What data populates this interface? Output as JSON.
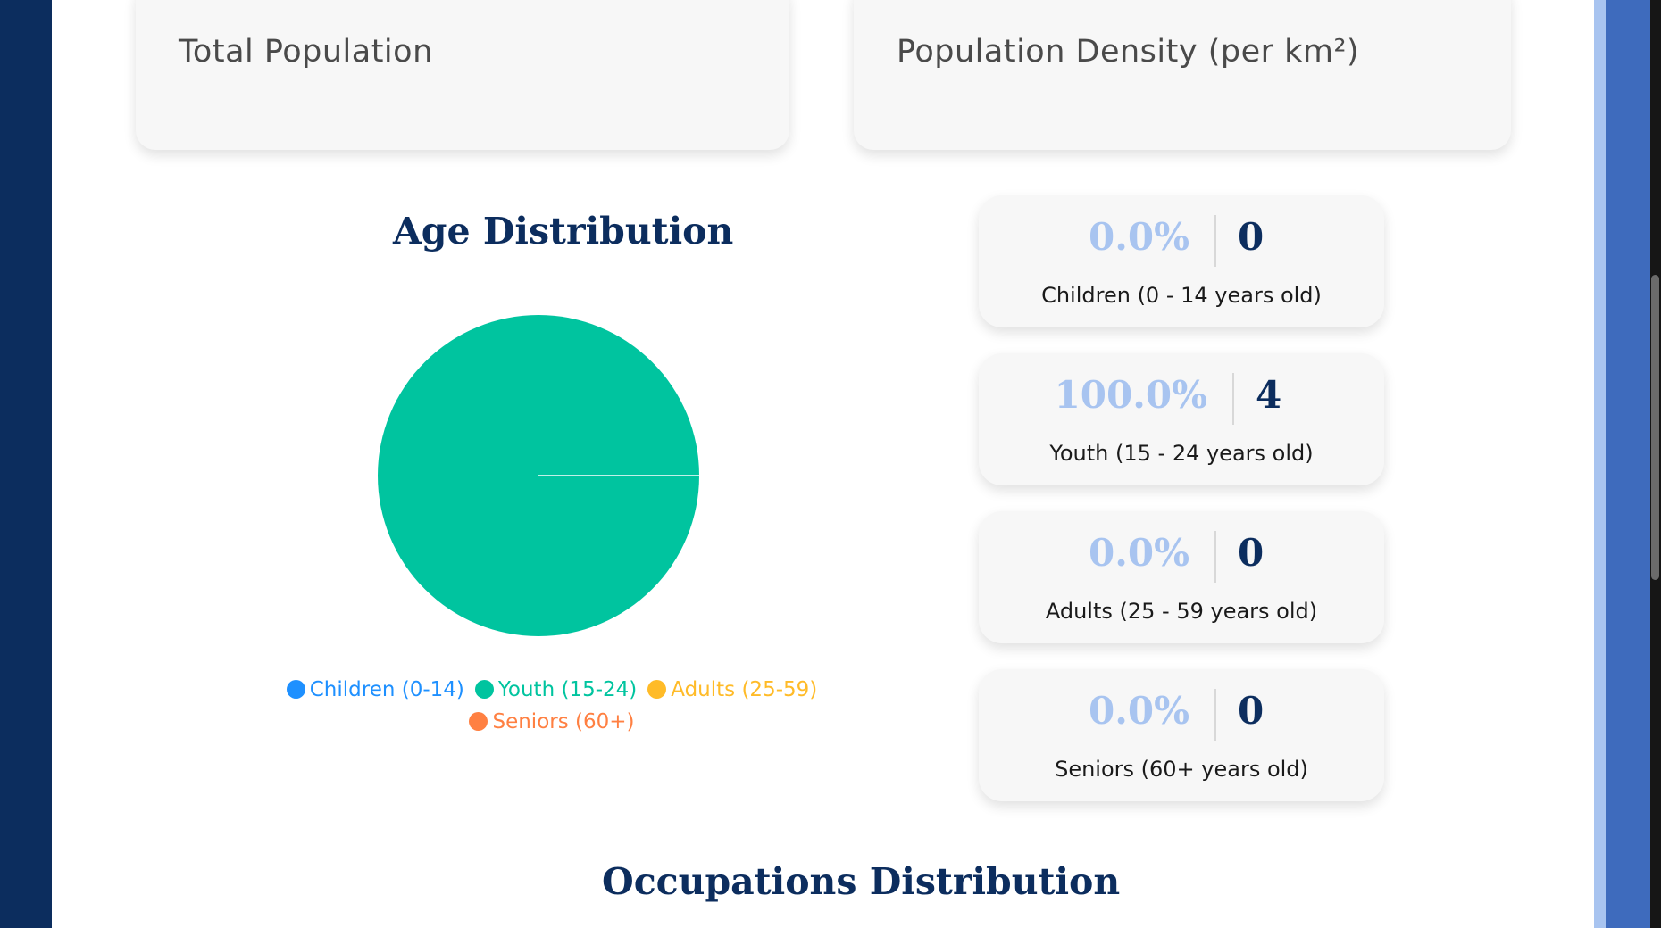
{
  "stats": {
    "total_population_label": "Total Population",
    "population_density_label": "Population Density (per km²)"
  },
  "age_section": {
    "title": "Age Distribution",
    "cards": [
      {
        "percent": "0.0%",
        "count": "0",
        "label": "Children (0 - 14 years old)"
      },
      {
        "percent": "100.0%",
        "count": "4",
        "label": "Youth (15 - 24 years old)"
      },
      {
        "percent": "0.0%",
        "count": "0",
        "label": "Adults (25 - 59 years old)"
      },
      {
        "percent": "0.0%",
        "count": "0",
        "label": "Seniors (60+ years old)"
      }
    ]
  },
  "chart_data": {
    "type": "pie",
    "categories": [
      "Children (0-14)",
      "Youth (15-24)",
      "Adults (25-59)",
      "Seniors (60+)"
    ],
    "values": [
      0,
      4,
      0,
      0
    ],
    "colors": [
      "#1e90ff",
      "#00c49f",
      "#ffbb28",
      "#ff8042"
    ],
    "legend_position": "bottom"
  },
  "occupations_section": {
    "title": "Occupations Distribution"
  },
  "colors": {
    "navy": "#0c2d5e",
    "percent_light_blue": "#a8c4f0",
    "card_background": "#f7f7f7"
  }
}
